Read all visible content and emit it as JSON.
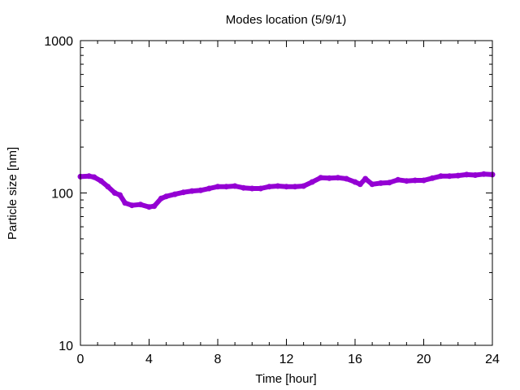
{
  "chart_data": {
    "type": "line",
    "title": "Modes location (5/9/1)",
    "xlabel": "Time [hour]",
    "ylabel": "Particle size [nm]",
    "xlim": [
      0,
      24
    ],
    "ylim": [
      10,
      1000
    ],
    "yscale": "log",
    "x_ticks": [
      0,
      4,
      8,
      12,
      16,
      20,
      24
    ],
    "x_tick_labels": [
      "0",
      "4",
      "8",
      "12",
      "16",
      "20",
      "24"
    ],
    "y_ticks": [
      10,
      100,
      1000
    ],
    "y_tick_labels": [
      "10",
      "100",
      "1000"
    ],
    "grid": false,
    "legend": "none",
    "series_color": "#9400d3",
    "series": [
      {
        "x": [
          0,
          0.5,
          0.8,
          1.2,
          1.6,
          2.0,
          2.3,
          2.6,
          3.0,
          3.5,
          4.0,
          4.3,
          4.7,
          5.0,
          5.5,
          6.0,
          6.5,
          7.0,
          7.5,
          8.0,
          8.5,
          9.0,
          9.5,
          10.0,
          10.5,
          11.0,
          11.5,
          12.0,
          12.5,
          13.0,
          13.5,
          14.0,
          14.5,
          15.0,
          15.5,
          16.0,
          16.3,
          16.6,
          17.0,
          17.5,
          18.0,
          18.5,
          19.0,
          19.5,
          20.0,
          20.5,
          21.0,
          21.5,
          22.0,
          22.5,
          23.0,
          23.5,
          24.0
        ],
        "y": [
          128,
          129,
          127,
          120,
          110,
          100,
          97,
          86,
          83,
          84,
          81,
          82,
          92,
          95,
          98,
          101,
          103,
          104,
          107,
          110,
          110,
          111,
          108,
          107,
          107,
          110,
          111,
          110,
          110,
          111,
          118,
          126,
          125,
          126,
          124,
          118,
          114,
          124,
          114,
          116,
          117,
          122,
          120,
          121,
          121,
          125,
          129,
          129,
          130,
          132,
          131,
          133,
          132
        ]
      }
    ]
  }
}
